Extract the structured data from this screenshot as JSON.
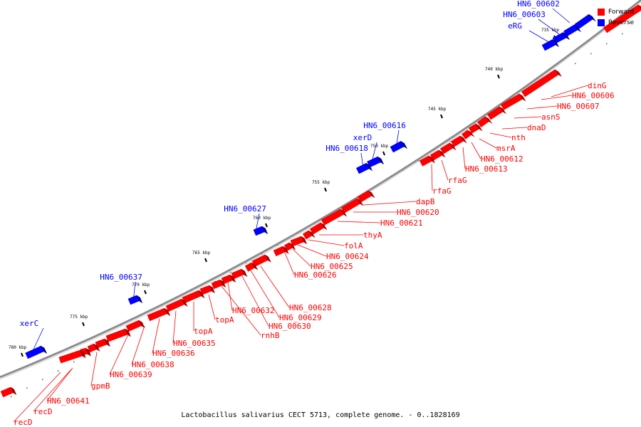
{
  "caption": "Lactobacillus salivarius CECT 5713, complete genome. - 0..1828169",
  "legend": [
    {
      "label": "Forward",
      "color": "#ff0000"
    },
    {
      "label": "Reverse",
      "color": "#0000ff"
    }
  ],
  "colors": {
    "forward": "#ff0000",
    "forward_dark": "#a00000",
    "reverse": "#0000ff",
    "reverse_dark": "#00008c",
    "backbone": "#8c8c8c"
  },
  "ticks": [
    "735 kbp",
    "740 kbp",
    "745 kbp",
    "750 kbp",
    "755 kbp",
    "760 kbp",
    "765 kbp",
    "770 kbp",
    "775 kbp",
    "780 kbp"
  ],
  "forward_labels": [
    "dinG",
    "HN6_00606",
    "HN6_00607",
    "asnS",
    "dnaD",
    "nth",
    "msrA",
    "HN6_00612",
    "HN6_00613",
    "rfaG",
    "rfaG",
    "dapB",
    "HN6_00620",
    "HN6_00621",
    "thyA",
    "folA",
    "HN6_00624",
    "HN6_00625",
    "HN6_00626",
    "HN6_00628",
    "HN6_00629",
    "HN6_00630",
    "HN6_00632",
    "rnhB",
    "topA",
    "topA",
    "HN6_00635",
    "HN6_00636",
    "HN6_00638",
    "HN6_00639",
    "gpmB",
    "HN6_00641",
    "recD",
    "recD"
  ],
  "reverse_labels": [
    "HN6_00602",
    "HN6_00603",
    "eRG",
    "HN6_00616",
    "xerD",
    "HN6_00618",
    "HN6_00627",
    "HN6_00637",
    "xerC"
  ]
}
